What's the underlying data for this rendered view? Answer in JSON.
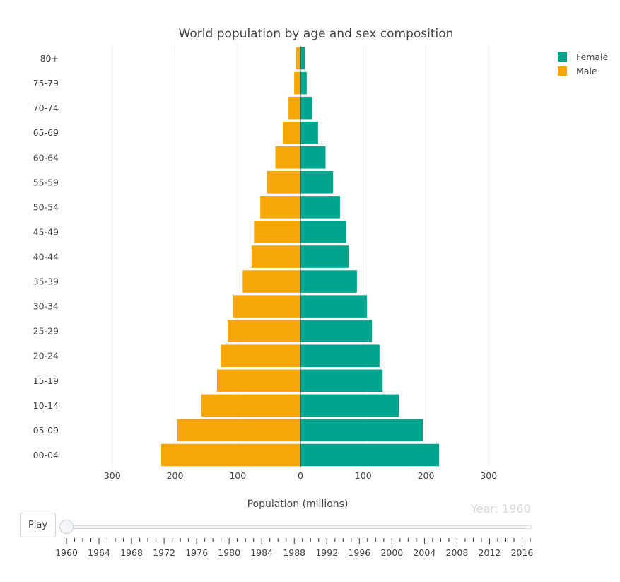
{
  "chart_data": {
    "type": "bar",
    "orientation": "horizontal-population-pyramid",
    "title": "World population by age and sex composition",
    "xlabel": "Population (millions)",
    "ylabel": "",
    "xlim": [
      -300,
      300
    ],
    "x_ticks": [
      -300,
      -200,
      -100,
      0,
      100,
      200,
      300
    ],
    "x_tick_labels": [
      "300",
      "200",
      "100",
      "0",
      "100",
      "200",
      "300"
    ],
    "categories": [
      "00-04",
      "05-09",
      "10-14",
      "15-19",
      "20-24",
      "25-29",
      "30-34",
      "35-39",
      "40-44",
      "45-49",
      "50-54",
      "55-59",
      "60-64",
      "65-69",
      "70-74",
      "75-79",
      "80+"
    ],
    "series": [
      {
        "name": "Female",
        "color": "#00a58e",
        "values": [
          221,
          195,
          157,
          131,
          126,
          114,
          106,
          90,
          77,
          73,
          63,
          52,
          40,
          28,
          19,
          10,
          7
        ]
      },
      {
        "name": "Male",
        "color": "#f6a607",
        "values": [
          222,
          196,
          158,
          133,
          127,
          116,
          107,
          92,
          78,
          74,
          64,
          53,
          40,
          28,
          19,
          10,
          7
        ]
      }
    ],
    "grid": true,
    "legend_position": "top-right"
  },
  "controls": {
    "play_label": "Play",
    "year_label": "Year: 1960",
    "slider_value": 1960,
    "slider_min": 1960,
    "slider_max": 2017,
    "slider_labels": [
      "1960",
      "1964",
      "1968",
      "1972",
      "1976",
      "1980",
      "1984",
      "1988",
      "1992",
      "1996",
      "2000",
      "2004",
      "2008",
      "2012",
      "2016"
    ]
  }
}
